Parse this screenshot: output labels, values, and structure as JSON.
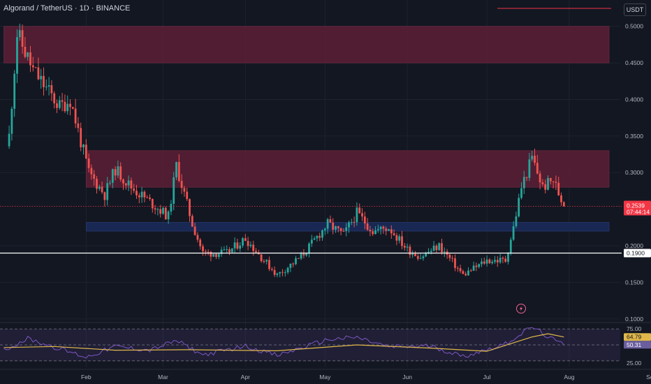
{
  "header": {
    "title": "Algorand / TetherUS · 1D · BINANCE",
    "currency": "USDT"
  },
  "colors": {
    "background": "#131722",
    "up": "#26a69a",
    "down": "#ef5350",
    "supply_zone": "#5d1f35",
    "demand_zone": "#1b2c5a",
    "rsi_line": "#7e57c2",
    "rsi_ma": "#e0b84a",
    "current_tag": "#f23645",
    "support_tag": "#ffffff"
  },
  "price_axis": {
    "ticks": [
      "0.5000",
      "0.4500",
      "0.4000",
      "0.3500",
      "0.3000",
      "0.2000",
      "0.1500",
      "0.1000"
    ]
  },
  "time_axis": {
    "labels": [
      "Feb",
      "Mar",
      "Apr",
      "May",
      "Jun",
      "Jul",
      "Aug",
      "Sep"
    ]
  },
  "tags": {
    "current_price": "0.2539",
    "countdown": "07:44:14",
    "support": "0.1900"
  },
  "rsi": {
    "ticks": [
      "75.00",
      "25.00"
    ],
    "rsi_value": "50.31",
    "ma_value": "64.79"
  },
  "chart_data": {
    "type": "candlestick",
    "symbol": "Algorand / TetherUS",
    "interval": "1D",
    "exchange": "BINANCE",
    "ylim": [
      0.095,
      0.515
    ],
    "support_level": 0.19,
    "last_close": 0.2539,
    "zones": [
      {
        "kind": "supply",
        "from": "Jan 1",
        "low": 0.45,
        "high": 0.5
      },
      {
        "kind": "supply",
        "from": "Feb 1",
        "low": 0.28,
        "high": 0.33
      },
      {
        "kind": "demand",
        "from": "Feb 1",
        "low": 0.22,
        "high": 0.232
      }
    ],
    "price_path": [
      {
        "date": "Jan 3",
        "close": 0.35
      },
      {
        "date": "Jan 6",
        "close": 0.49
      },
      {
        "date": "Jan 12",
        "close": 0.44
      },
      {
        "date": "Jan 22",
        "close": 0.39
      },
      {
        "date": "Jan 26",
        "close": 0.4
      },
      {
        "date": "Feb 2",
        "close": 0.3
      },
      {
        "date": "Feb 8",
        "close": 0.27
      },
      {
        "date": "Feb 12",
        "close": 0.305
      },
      {
        "date": "Feb 18",
        "close": 0.28
      },
      {
        "date": "Feb 25",
        "close": 0.26
      },
      {
        "date": "Mar 3",
        "close": 0.24
      },
      {
        "date": "Mar 6",
        "close": 0.31
      },
      {
        "date": "Mar 12",
        "close": 0.23
      },
      {
        "date": "Mar 16",
        "close": 0.19
      },
      {
        "date": "Mar 25",
        "close": 0.19
      },
      {
        "date": "Apr 1",
        "close": 0.21
      },
      {
        "date": "Apr 8",
        "close": 0.18
      },
      {
        "date": "Apr 13",
        "close": 0.16
      },
      {
        "date": "Apr 22",
        "close": 0.185
      },
      {
        "date": "May 2",
        "close": 0.23
      },
      {
        "date": "May 8",
        "close": 0.215
      },
      {
        "date": "May 13",
        "close": 0.245
      },
      {
        "date": "May 19",
        "close": 0.22
      },
      {
        "date": "May 25",
        "close": 0.225
      },
      {
        "date": "Jun 1",
        "close": 0.195
      },
      {
        "date": "Jun 6",
        "close": 0.185
      },
      {
        "date": "Jun 13",
        "close": 0.2
      },
      {
        "date": "Jun 22",
        "close": 0.16
      },
      {
        "date": "Jul 1",
        "close": 0.18
      },
      {
        "date": "Jul 8",
        "close": 0.18
      },
      {
        "date": "Jul 11",
        "close": 0.225
      },
      {
        "date": "Jul 14",
        "close": 0.28
      },
      {
        "date": "Jul 18",
        "close": 0.32
      },
      {
        "date": "Jul 22",
        "close": 0.28
      },
      {
        "date": "Jul 26",
        "close": 0.29
      },
      {
        "date": "Jul 30",
        "close": 0.2539
      }
    ],
    "rsi_ylim": [
      8,
      92
    ],
    "rsi_levels": [
      80,
      50,
      20
    ],
    "rsi_path": [
      {
        "date": "Jan 1",
        "rsi": 40
      },
      {
        "date": "Jan 10",
        "rsi": 62
      },
      {
        "date": "Jan 20",
        "rsi": 46
      },
      {
        "date": "Feb 1",
        "rsi": 27
      },
      {
        "date": "Feb 12",
        "rsi": 47
      },
      {
        "date": "Feb 25",
        "rsi": 40
      },
      {
        "date": "Mar 6",
        "rsi": 58
      },
      {
        "date": "Mar 16",
        "rsi": 31
      },
      {
        "date": "Apr 1",
        "rsi": 48
      },
      {
        "date": "Apr 13",
        "rsi": 30
      },
      {
        "date": "May 2",
        "rsi": 60
      },
      {
        "date": "May 13",
        "rsi": 64
      },
      {
        "date": "May 25",
        "rsi": 46
      },
      {
        "date": "Jun 10",
        "rsi": 48
      },
      {
        "date": "Jun 22",
        "rsi": 28
      },
      {
        "date": "Jul 8",
        "rsi": 52
      },
      {
        "date": "Jul 18",
        "rsi": 84
      },
      {
        "date": "Jul 25",
        "rsi": 62
      },
      {
        "date": "Jul 30",
        "rsi": 50.31
      }
    ],
    "rsi_ma_path": [
      {
        "date": "Jan 1",
        "ma": 45
      },
      {
        "date": "Jan 20",
        "ma": 47
      },
      {
        "date": "Feb 12",
        "ma": 40
      },
      {
        "date": "Mar 10",
        "ma": 41
      },
      {
        "date": "Apr 13",
        "ma": 39
      },
      {
        "date": "May 13",
        "ma": 50
      },
      {
        "date": "Jun 10",
        "ma": 44
      },
      {
        "date": "Jul 1",
        "ma": 38
      },
      {
        "date": "Jul 18",
        "ma": 65
      },
      {
        "date": "Jul 24",
        "ma": 71
      },
      {
        "date": "Jul 30",
        "ma": 64.79
      }
    ]
  }
}
